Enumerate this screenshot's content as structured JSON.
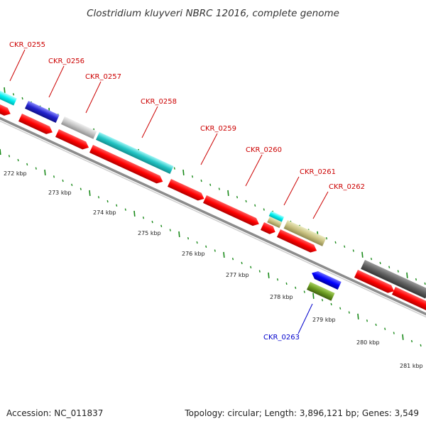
{
  "title": "Clostridium kluyveri NBRC 12016, complete genome",
  "footer": {
    "accession": "Accession: NC_011837",
    "summary": "Topology: circular; Length: 3,896,121 bp; Genes: 3,549"
  },
  "colors": {
    "backbone": "#8c8c8c",
    "tick": "#1a8a1a",
    "label_forward": "#cc0000",
    "label_reverse": "#0000cc"
  },
  "scale": {
    "unit": "kbp",
    "labels": [
      "272 kbp",
      "273 kbp",
      "274 kbp",
      "275 kbp",
      "276 kbp",
      "277 kbp",
      "278 kbp",
      "279 kbp",
      "280 kbp",
      "281 kbp"
    ]
  },
  "genes": [
    {
      "label": "CKR_0255",
      "strand": "forward",
      "color": "#00e0e0"
    },
    {
      "label": "CKR_0256",
      "strand": "forward",
      "color": "#2222cc"
    },
    {
      "label": "CKR_0257",
      "strand": "forward",
      "color": "#c0c0c0"
    },
    {
      "label": "CKR_0258",
      "strand": "forward",
      "color": "#20c0c0"
    },
    {
      "label": "CKR_0259",
      "strand": "forward",
      "color": "#ff0000"
    },
    {
      "label": "CKR_0260",
      "strand": "forward",
      "color": "#ff0000"
    },
    {
      "label": "CKR_0261",
      "strand": "forward",
      "color": "#00f0f0"
    },
    {
      "label": "CKR_0262",
      "strand": "forward",
      "color": "#c8c080"
    },
    {
      "label": "CKR_0263",
      "strand": "reverse",
      "color": "#6a9a20"
    }
  ]
}
